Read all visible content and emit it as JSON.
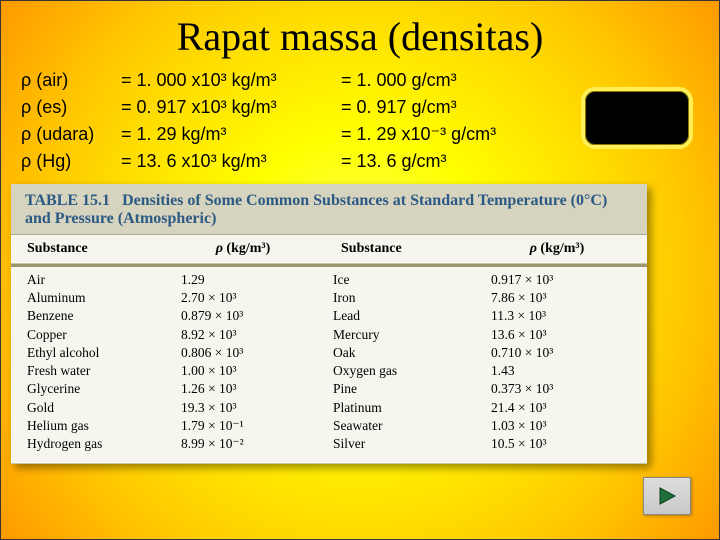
{
  "title": "Rapat massa (densitas)",
  "rows": [
    {
      "lhs": "ρ (air)",
      "mid": "= 1. 000 x10³ kg/m³",
      "rhs": "= 1. 000 g/cm³"
    },
    {
      "lhs": "ρ (es)",
      "mid": "= 0. 917 x10³ kg/m³",
      "rhs": "= 0. 917 g/cm³"
    },
    {
      "lhs": "ρ (udara)",
      "mid": "= 1. 29  kg/m³",
      "rhs": "= 1. 29 x10⁻³ g/cm³"
    },
    {
      "lhs": "ρ (Hg)",
      "mid": "= 13. 6 x10³ kg/m³",
      "rhs": "= 13. 6 g/cm³"
    }
  ],
  "table": {
    "number": "TABLE 15.1",
    "caption": "Densities of Some Common Substances at Standard Temperature (0°C) and Pressure (Atmospheric)",
    "col_headers": [
      "Substance",
      "ρ (kg/m³)",
      "Substance",
      "ρ (kg/m³)"
    ],
    "body": [
      [
        "Air",
        "1.29",
        "Ice",
        "0.917 × 10³"
      ],
      [
        "Aluminum",
        "2.70 × 10³",
        "Iron",
        "7.86 × 10³"
      ],
      [
        "Benzene",
        "0.879 × 10³",
        "Lead",
        "11.3 × 10³"
      ],
      [
        "Copper",
        "8.92 × 10³",
        "Mercury",
        "13.6 × 10³"
      ],
      [
        "Ethyl alcohol",
        "0.806 × 10³",
        "Oak",
        "0.710 × 10³"
      ],
      [
        "Fresh water",
        "1.00 × 10³",
        "Oxygen gas",
        "1.43"
      ],
      [
        "Glycerine",
        "1.26 × 10³",
        "Pine",
        "0.373 × 10³"
      ],
      [
        "Gold",
        "19.3 × 10³",
        "Platinum",
        "21.4 × 10³"
      ],
      [
        "Helium gas",
        "1.79 × 10⁻¹",
        "Seawater",
        "1.03 × 10³"
      ],
      [
        "Hydrogen gas",
        "8.99 × 10⁻²",
        "Silver",
        "10.5 × 10³"
      ]
    ]
  },
  "colors": {
    "slide_bg_center": "#ffff66",
    "slide_bg_edge": "#ff9900",
    "table_header_bg": "#d6d3bf",
    "table_header_fg": "#2b5a84",
    "table_body_bg": "#f7f6ee",
    "box_bg": "#000000",
    "box_border": "#ffee55"
  }
}
